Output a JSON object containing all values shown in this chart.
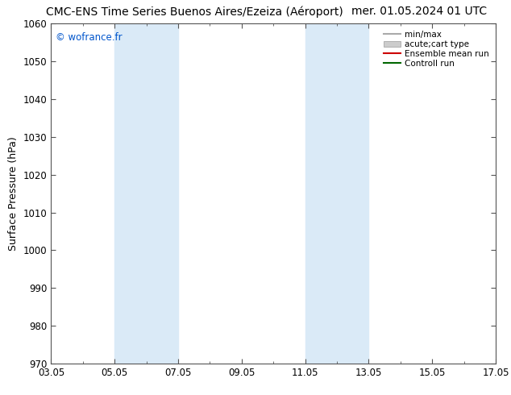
{
  "title_left": "CMC-ENS Time Series Buenos Aires/Ezeiza (Aéroport)",
  "title_right": "mer. 01.05.2024 01 UTC",
  "ylabel": "Surface Pressure (hPa)",
  "ylim": [
    970,
    1060
  ],
  "yticks": [
    970,
    980,
    990,
    1000,
    1010,
    1020,
    1030,
    1040,
    1050,
    1060
  ],
  "xlim_start": 0,
  "xlim_end": 14,
  "xtick_labels": [
    "03.05",
    "05.05",
    "07.05",
    "09.05",
    "11.05",
    "13.05",
    "15.05",
    "17.05"
  ],
  "xtick_positions": [
    0,
    2,
    4,
    6,
    8,
    10,
    12,
    14
  ],
  "shaded_bands": [
    {
      "xstart": 2.0,
      "xend": 4.0
    },
    {
      "xstart": 8.0,
      "xend": 10.0
    }
  ],
  "band_color": "#daeaf7",
  "background_color": "#ffffff",
  "plot_bg_color": "#ffffff",
  "watermark": "© wofrance.fr",
  "watermark_color": "#0055cc",
  "legend_entries": [
    {
      "label": "min/max"
    },
    {
      "label": "acute;cart type"
    },
    {
      "label": "Ensemble mean run"
    },
    {
      "label": "Controll run"
    }
  ],
  "title_fontsize": 10,
  "axis_label_fontsize": 9,
  "tick_fontsize": 8.5
}
